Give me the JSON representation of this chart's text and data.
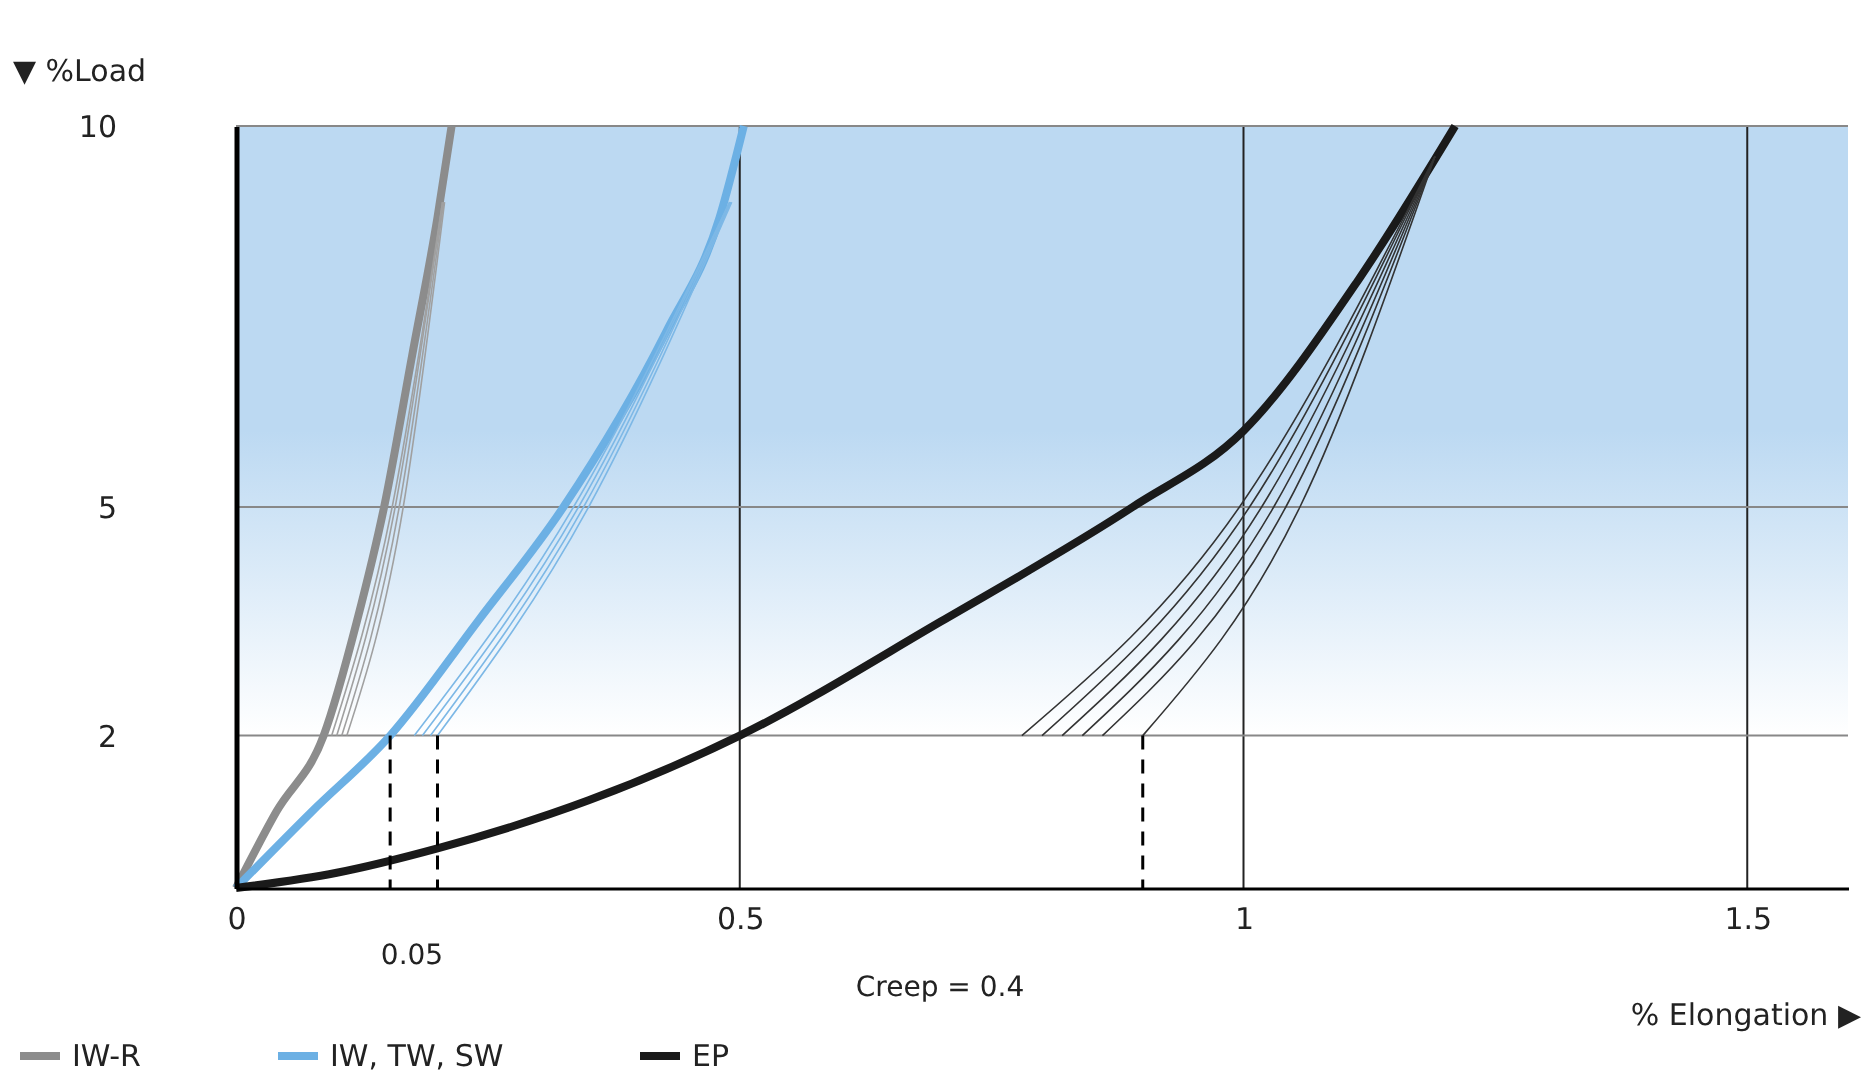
{
  "chart_data": {
    "type": "line",
    "xlabel": "% Elongation ▶",
    "ylabel": "▼ %Load",
    "xlim": [
      0,
      1.6
    ],
    "ylim": [
      0,
      10
    ],
    "xticks": [
      0,
      0.5,
      1,
      1.5
    ],
    "yticks": [
      2,
      5,
      10
    ],
    "grid": true,
    "legend": "bottom",
    "marker": "none",
    "bands": [
      {
        "axis": "y",
        "from": 2,
        "to": 10,
        "color": "#bcd9f2"
      }
    ],
    "series": [
      {
        "name": "IW-R",
        "color": "#8c8c8c",
        "x": [
          0,
          0.04,
          0.087,
          0.12,
          0.147,
          0.175,
          0.2,
          0.214
        ],
        "values": [
          0,
          1,
          2,
          3.5,
          5,
          7,
          8.8,
          10
        ]
      },
      {
        "name": "IW, TW, SW",
        "color": "#6cb0e4",
        "x": [
          0,
          0.075,
          0.153,
          0.24,
          0.325,
          0.427,
          0.48,
          0.504
        ],
        "values": [
          0,
          1,
          2,
          3.5,
          5,
          7.3,
          8.8,
          10
        ]
      },
      {
        "name": "EP",
        "color": "#1a1a1a",
        "x": [
          0,
          0.1,
          0.2,
          0.35,
          0.5,
          0.7,
          0.89,
          1,
          1.115,
          1.21
        ],
        "values": [
          0,
          0.2,
          0.52,
          1.15,
          2,
          3.5,
          5,
          6,
          8,
          10
        ]
      },
      {
        "color": "#a0a0a0",
        "x": [
          0.095,
          0.155,
          0.205
        ],
        "values": [
          2,
          5,
          9
        ]
      },
      {
        "color": "#a0a0a0",
        "x": [
          0.1,
          0.158,
          0.205
        ],
        "values": [
          2,
          5,
          9
        ]
      },
      {
        "color": "#a0a0a0",
        "x": [
          0.105,
          0.162,
          0.206
        ],
        "values": [
          2,
          5,
          9
        ]
      },
      {
        "color": "#a0a0a0",
        "x": [
          0.11,
          0.166,
          0.207
        ],
        "values": [
          2,
          5,
          9
        ]
      },
      {
        "color": "#7db8e6",
        "x": [
          0.177,
          0.335,
          0.49
        ],
        "values": [
          2,
          5,
          9
        ]
      },
      {
        "color": "#7db8e6",
        "x": [
          0.185,
          0.34,
          0.49
        ],
        "values": [
          2,
          5,
          9
        ]
      },
      {
        "color": "#7db8e6",
        "x": [
          0.193,
          0.345,
          0.491
        ],
        "values": [
          2,
          5,
          9
        ]
      },
      {
        "color": "#7db8e6",
        "x": [
          0.2,
          0.35,
          0.492
        ],
        "values": [
          2,
          5,
          9
        ]
      },
      {
        "color": "#333333",
        "x": [
          0.78,
          0.996,
          1.19
        ],
        "values": [
          2,
          5,
          9.6
        ]
      },
      {
        "color": "#333333",
        "x": [
          0.8,
          1.006,
          1.19
        ],
        "values": [
          2,
          5,
          9.6
        ]
      },
      {
        "color": "#333333",
        "x": [
          0.82,
          1.018,
          1.19
        ],
        "values": [
          2,
          5,
          9.6
        ]
      },
      {
        "color": "#333333",
        "x": [
          0.84,
          1.03,
          1.19
        ],
        "values": [
          2,
          5,
          9.6
        ]
      },
      {
        "color": "#333333",
        "x": [
          0.86,
          1.042,
          1.19
        ],
        "values": [
          2,
          5,
          9.6
        ]
      },
      {
        "color": "#333333",
        "x": [
          0.9,
          1.056,
          1.19
        ],
        "values": [
          2,
          5,
          9.6
        ]
      },
      {
        "color": "#000000",
        "line_style": "dashed",
        "x": [
          0.153,
          0.153
        ],
        "values": [
          2,
          0
        ]
      },
      {
        "color": "#000000",
        "line_style": "dashed",
        "x": [
          0.2,
          0.2
        ],
        "values": [
          2,
          0
        ]
      },
      {
        "color": "#000000",
        "line_style": "dashed",
        "x": [
          0.9,
          0.9
        ],
        "values": [
          2,
          0
        ]
      }
    ],
    "annotations": [
      "0.05",
      "Creep = 0.4"
    ]
  }
}
